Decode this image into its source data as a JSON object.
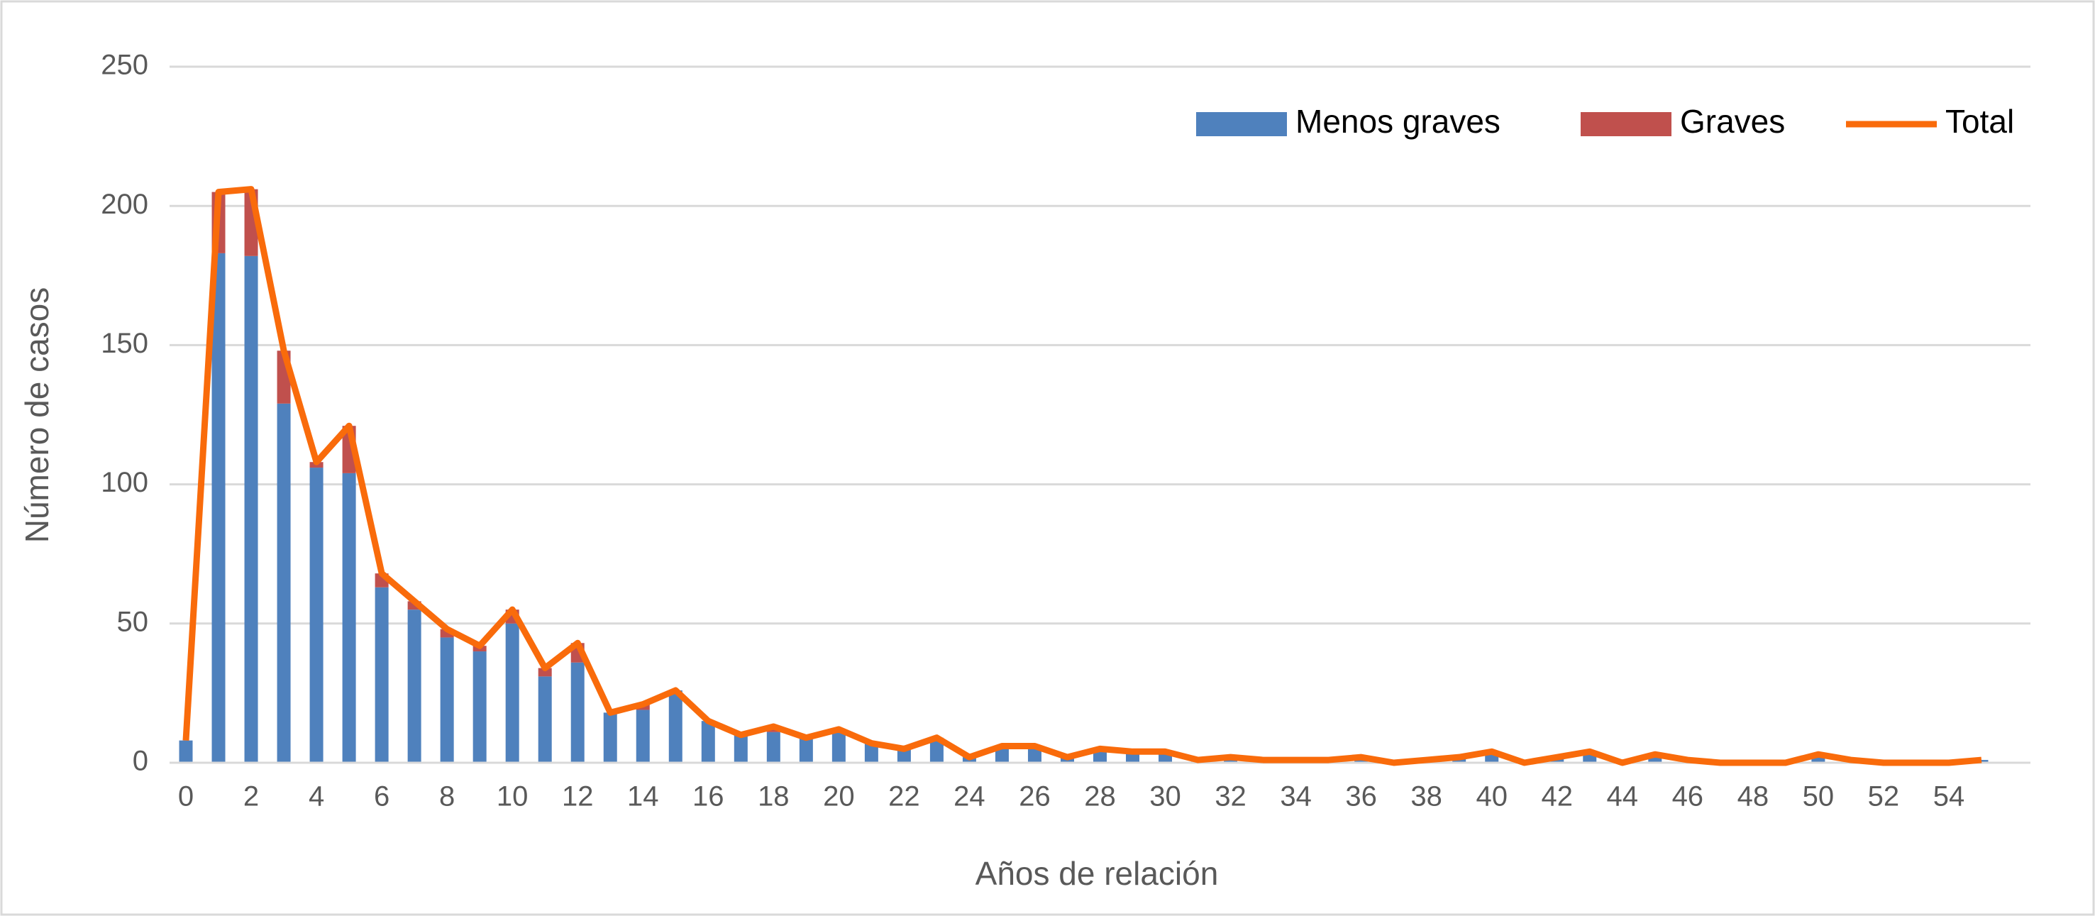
{
  "chart_data": {
    "type": "bar",
    "xlabel": "Años de relación",
    "ylabel": "Número de casos",
    "x": [
      0,
      1,
      2,
      3,
      4,
      5,
      6,
      7,
      8,
      9,
      10,
      11,
      12,
      13,
      14,
      15,
      16,
      17,
      18,
      19,
      20,
      21,
      22,
      23,
      24,
      25,
      26,
      27,
      28,
      29,
      30,
      31,
      32,
      33,
      34,
      35,
      36,
      37,
      38,
      39,
      40,
      41,
      42,
      43,
      44,
      45,
      46,
      47,
      48,
      49,
      50,
      51,
      52,
      53,
      54,
      55
    ],
    "xlim": [
      -0.5,
      56.5
    ],
    "xticks": [
      0,
      2,
      4,
      6,
      8,
      10,
      12,
      14,
      16,
      18,
      20,
      22,
      24,
      26,
      28,
      30,
      32,
      34,
      36,
      38,
      40,
      42,
      44,
      46,
      48,
      50,
      52,
      54
    ],
    "ylim": [
      0,
      250
    ],
    "yticks": [
      0,
      50,
      100,
      150,
      200,
      250
    ],
    "grid": true,
    "legend": "upper right",
    "series": [
      {
        "name": "Menos graves",
        "color": "#4f81bd",
        "type": "bar",
        "values": [
          8,
          183,
          182,
          129,
          106,
          104,
          63,
          55,
          45,
          40,
          50,
          31,
          36,
          18,
          19,
          26,
          15,
          10,
          11,
          9,
          12,
          7,
          5,
          9,
          2,
          6,
          6,
          2,
          5,
          4,
          4,
          1,
          2,
          1,
          1,
          1,
          2,
          0,
          1,
          2,
          4,
          0,
          2,
          4,
          0,
          3,
          1,
          0,
          0,
          0,
          3,
          1,
          0,
          0,
          0,
          1
        ]
      },
      {
        "name": "Graves",
        "color": "#c0504d",
        "type": "bar",
        "values": [
          0,
          22,
          24,
          19,
          2,
          17,
          5,
          3,
          3,
          2,
          5,
          3,
          7,
          0,
          2,
          0,
          0,
          0,
          2,
          0,
          0,
          0,
          0,
          0,
          0,
          0,
          0,
          0,
          0,
          0,
          0,
          0,
          0,
          0,
          0,
          0,
          0,
          0,
          0,
          0,
          0,
          0,
          0,
          0,
          0,
          0,
          0,
          0,
          0,
          0,
          0,
          0,
          0,
          0,
          0,
          0
        ]
      },
      {
        "name": "Total",
        "color": "#f96b0b",
        "type": "line",
        "values": [
          8,
          205,
          206,
          148,
          108,
          121,
          68,
          58,
          48,
          42,
          55,
          34,
          43,
          18,
          21,
          26,
          15,
          10,
          13,
          9,
          12,
          7,
          5,
          9,
          2,
          6,
          6,
          2,
          5,
          4,
          4,
          1,
          2,
          1,
          1,
          1,
          2,
          0,
          1,
          2,
          4,
          0,
          2,
          4,
          0,
          3,
          1,
          0,
          0,
          0,
          3,
          1,
          0,
          0,
          0,
          1
        ]
      }
    ]
  }
}
